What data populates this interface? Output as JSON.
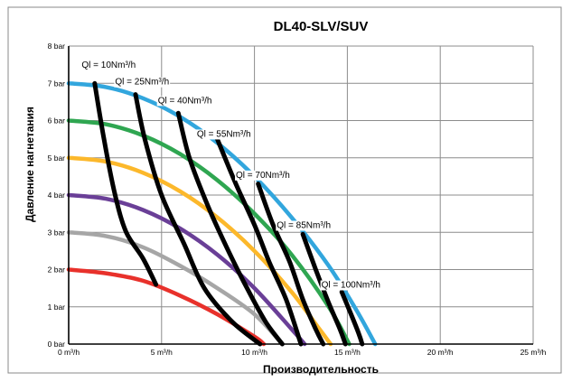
{
  "chart_data": {
    "type": "line",
    "title": "DL40-SLV/SUV",
    "xlabel": "Производительность",
    "ylabel": "Давление нагнетания",
    "xlim": [
      0,
      25
    ],
    "ylim": [
      0,
      8
    ],
    "x_ticks": [
      0,
      5,
      10,
      15,
      20,
      25
    ],
    "x_tick_labels": [
      "0 m³/h",
      "5 m³/h",
      "10 m³/h",
      "15 m³/h",
      "20 m³/h",
      "25 m³/h"
    ],
    "y_ticks": [
      0,
      1,
      2,
      3,
      4,
      5,
      6,
      7,
      8
    ],
    "y_tick_labels": [
      "0 bar",
      "1 bar",
      "2 bar",
      "3 bar",
      "4 bar",
      "5 bar",
      "6 bar",
      "7 bar",
      "8 bar"
    ],
    "grid": true,
    "pressure_curves": [
      {
        "color": "#e8312b",
        "points": [
          [
            0,
            2.0
          ],
          [
            2,
            1.9
          ],
          [
            4,
            1.7
          ],
          [
            6,
            1.3
          ],
          [
            8,
            0.8
          ],
          [
            10,
            0.2
          ],
          [
            10.5,
            0
          ]
        ]
      },
      {
        "color": "#a6a6a6",
        "points": [
          [
            0,
            3.0
          ],
          [
            2,
            2.9
          ],
          [
            4,
            2.6
          ],
          [
            6,
            2.1
          ],
          [
            8,
            1.5
          ],
          [
            10,
            0.8
          ],
          [
            11.5,
            0
          ]
        ]
      },
      {
        "color": "#6a3f97",
        "points": [
          [
            0,
            4.0
          ],
          [
            2,
            3.9
          ],
          [
            4,
            3.6
          ],
          [
            6,
            3.1
          ],
          [
            8,
            2.4
          ],
          [
            10,
            1.5
          ],
          [
            12,
            0.4
          ],
          [
            12.7,
            0
          ]
        ]
      },
      {
        "color": "#fcb82b",
        "points": [
          [
            0,
            5.0
          ],
          [
            2,
            4.9
          ],
          [
            4,
            4.6
          ],
          [
            6,
            4.1
          ],
          [
            8,
            3.4
          ],
          [
            10,
            2.5
          ],
          [
            12,
            1.4
          ],
          [
            13.5,
            0.4
          ],
          [
            14.1,
            0
          ]
        ]
      },
      {
        "color": "#2fa651",
        "points": [
          [
            0,
            6.0
          ],
          [
            2,
            5.9
          ],
          [
            4,
            5.6
          ],
          [
            6,
            5.1
          ],
          [
            8,
            4.4
          ],
          [
            10,
            3.5
          ],
          [
            12,
            2.4
          ],
          [
            14,
            1.0
          ],
          [
            15.1,
            0
          ]
        ]
      },
      {
        "color": "#32a6dd",
        "points": [
          [
            0,
            7.0
          ],
          [
            2,
            6.9
          ],
          [
            4,
            6.6
          ],
          [
            6,
            6.1
          ],
          [
            8,
            5.4
          ],
          [
            10,
            4.5
          ],
          [
            12,
            3.4
          ],
          [
            14,
            2.1
          ],
          [
            15.5,
            0.9
          ],
          [
            16.5,
            0
          ]
        ]
      }
    ],
    "flow_curves": [
      {
        "label": "Ql = 10Nm³/h",
        "color": "#000000",
        "points": []
      },
      {
        "label": "Ql = 25Nm³/h",
        "color": "#000000",
        "points": [
          [
            1.4,
            7.0
          ],
          [
            1.9,
            5.5
          ],
          [
            2.5,
            4.0
          ],
          [
            3.1,
            3.0
          ],
          [
            4.0,
            2.3
          ],
          [
            4.7,
            1.6
          ]
        ]
      },
      {
        "label": "Ql = 40Nm³/h",
        "color": "#000000",
        "points": [
          [
            3.6,
            6.7
          ],
          [
            4.1,
            5.5
          ],
          [
            5.0,
            4.0
          ],
          [
            6.2,
            2.7
          ],
          [
            7.3,
            1.5
          ],
          [
            8.8,
            0.6
          ],
          [
            10.3,
            0
          ]
        ]
      },
      {
        "label": "Ql = 55Nm³/h",
        "color": "#000000",
        "points": [
          [
            5.9,
            6.2
          ],
          [
            6.5,
            5.0
          ],
          [
            7.5,
            3.7
          ],
          [
            8.5,
            2.6
          ],
          [
            9.6,
            1.5
          ],
          [
            10.6,
            0.6
          ],
          [
            11.5,
            0
          ]
        ]
      },
      {
        "label": "Ql = 70Nm³/h",
        "color": "#000000",
        "points": [
          [
            8.0,
            5.5
          ],
          [
            9.0,
            4.3
          ],
          [
            10.0,
            3.2
          ],
          [
            10.8,
            2.2
          ],
          [
            11.7,
            1.2
          ],
          [
            12.5,
            0
          ]
        ]
      },
      {
        "label": "Ql = 85Nm³/h",
        "color": "#000000",
        "points": [
          [
            10.2,
            4.3
          ],
          [
            11.0,
            3.2
          ],
          [
            11.9,
            2.2
          ],
          [
            12.6,
            1.2
          ],
          [
            13.3,
            0.4
          ],
          [
            13.7,
            0
          ]
        ]
      },
      {
        "label": "Ql = 100Nm³/h",
        "color": "#000000",
        "points": [
          [
            12.6,
            2.95
          ],
          [
            13.3,
            2.0
          ],
          [
            14.0,
            1.1
          ],
          [
            14.6,
            0.4
          ],
          [
            14.9,
            0
          ]
        ]
      },
      {
        "label": "",
        "color": "#000000",
        "points": [
          [
            14.7,
            1.4
          ],
          [
            15.2,
            0.8
          ],
          [
            15.6,
            0.3
          ],
          [
            15.8,
            0
          ]
        ]
      }
    ],
    "flow_labels": [
      {
        "text": "Ql = 10Nm³/h",
        "x": 0.7,
        "y": 7.5
      },
      {
        "text": "Ql = 25Nm³/h",
        "x": 2.5,
        "y": 7.05
      },
      {
        "text": "Ql = 40Nm³/h",
        "x": 4.8,
        "y": 6.55
      },
      {
        "text": "Ql = 55Nm³/h",
        "x": 6.9,
        "y": 5.65
      },
      {
        "text": "Ql = 70Nm³/h",
        "x": 9.0,
        "y": 4.55
      },
      {
        "text": "Ql = 85Nm³/h",
        "x": 11.2,
        "y": 3.2
      },
      {
        "text": "Ql = 100Nm³/h",
        "x": 13.6,
        "y": 1.6
      }
    ]
  }
}
